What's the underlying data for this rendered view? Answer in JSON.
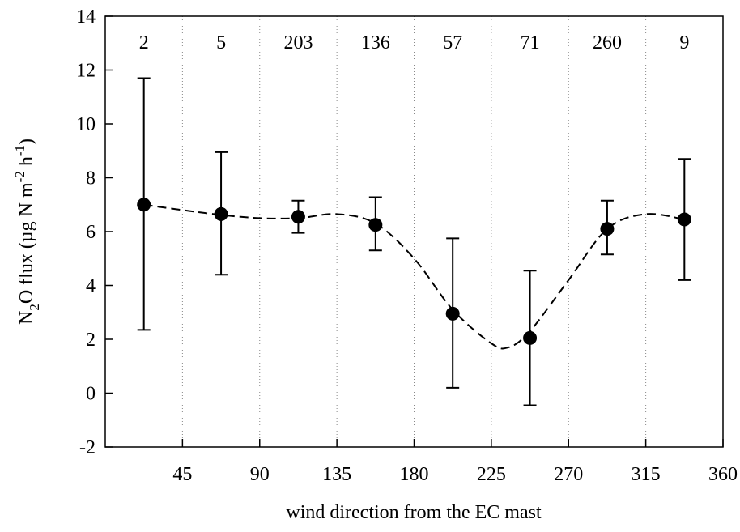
{
  "chart_data": {
    "type": "scatter",
    "x": [
      22.5,
      67.5,
      112.5,
      157.5,
      202.5,
      247.5,
      292.5,
      337.5
    ],
    "series": [
      {
        "values": [
          7.0,
          6.65,
          6.55,
          6.25,
          2.95,
          2.05,
          6.1,
          6.45
        ],
        "error_low": [
          2.35,
          4.4,
          5.95,
          5.3,
          0.2,
          -0.45,
          5.15,
          4.2
        ],
        "error_high": [
          11.7,
          8.95,
          7.15,
          7.28,
          5.75,
          4.55,
          7.15,
          8.7
        ],
        "sample_counts": [
          "2",
          "5",
          "203",
          "136",
          "57",
          "71",
          "260",
          "9"
        ],
        "marker": "filled-circle",
        "color": "#000000"
      }
    ],
    "fit_curve": {
      "style": "dashed",
      "color": "#000000",
      "points": [
        [
          22.5,
          7.0
        ],
        [
          45,
          6.8
        ],
        [
          67.5,
          6.62
        ],
        [
          90,
          6.5
        ],
        [
          112.5,
          6.5
        ],
        [
          135,
          6.65
        ],
        [
          157.5,
          6.3
        ],
        [
          180,
          5.0
        ],
        [
          202.5,
          3.1
        ],
        [
          225,
          1.85
        ],
        [
          235,
          1.7
        ],
        [
          247.5,
          2.3
        ],
        [
          270,
          4.2
        ],
        [
          292.5,
          6.1
        ],
        [
          315,
          6.65
        ],
        [
          337.5,
          6.45
        ]
      ]
    },
    "xlabel": "wind direction from the EC mast",
    "ylabel": {
      "base": "N",
      "sub": "2",
      "rest": "O flux (µg N m",
      "sup1": "-2",
      "mid": " h",
      "sup2": "-1",
      "end": ")"
    },
    "xticks": [
      "45",
      "90",
      "135",
      "180",
      "225",
      "270",
      "315",
      "360"
    ],
    "yticks": [
      "-2",
      "0",
      "2",
      "4",
      "6",
      "8",
      "10",
      "12",
      "14"
    ],
    "xlim": [
      0,
      360
    ],
    "ylim": [
      -2,
      14
    ],
    "vertical_gridlines": "dotted, at x ticks",
    "legend": "none"
  }
}
